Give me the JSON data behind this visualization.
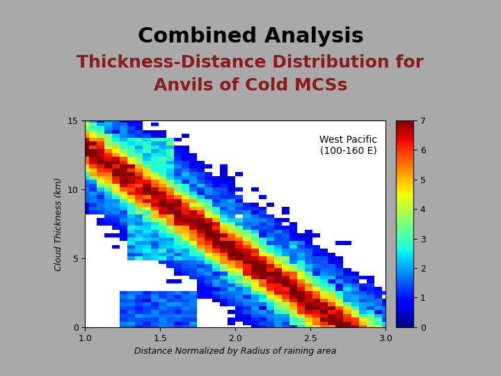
{
  "title_line1": "Combined Analysis",
  "title_line2": "Thickness-Distance Distribution for",
  "title_line3": "Anvils of Cold MCSs",
  "title_color": "#000000",
  "subtitle_color": "#8B1A1A",
  "bg_color": "#A9A9A9",
  "plot_bg_color": "#ffffff",
  "xlabel": "Distance Normalized by Radius of raining area",
  "ylabel": "Cloud Thickness (km)",
  "annotation": "West Pacific\n(100-160 E)",
  "xlim": [
    1.0,
    3.0
  ],
  "ylim": [
    0,
    15
  ],
  "xticks": [
    1.0,
    1.5,
    2.0,
    2.5,
    3.0
  ],
  "yticks": [
    0,
    5,
    10,
    15
  ],
  "colorbar_ticks": [
    0,
    1,
    2,
    3,
    4,
    5,
    6,
    7
  ],
  "vmin": 0,
  "vmax": 7,
  "cmap": "jet",
  "band_slope": -7.5,
  "band_intercept": 13.0,
  "nx": 40,
  "ny": 55
}
